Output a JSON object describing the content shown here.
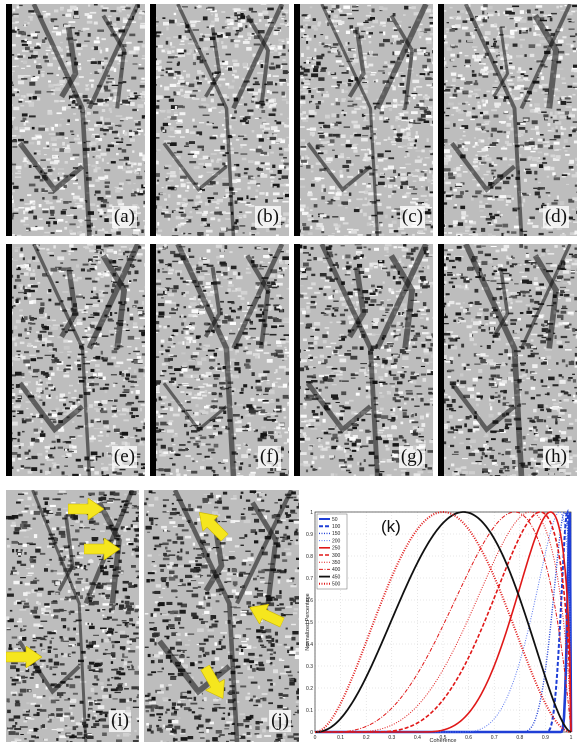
{
  "panels": [
    {
      "id": "a",
      "label": "(a)"
    },
    {
      "id": "b",
      "label": "(b)"
    },
    {
      "id": "c",
      "label": "(c)"
    },
    {
      "id": "d",
      "label": "(d)"
    },
    {
      "id": "e",
      "label": "(e)"
    },
    {
      "id": "f",
      "label": "(f)"
    },
    {
      "id": "g",
      "label": "(g)"
    },
    {
      "id": "h",
      "label": "(h)"
    },
    {
      "id": "i",
      "label": "(i)"
    },
    {
      "id": "j",
      "label": "(j)"
    }
  ],
  "arrow_color": "#f5e61e",
  "chart_data": {
    "type": "line",
    "panel_label": "(k)",
    "xlabel": "Coherence",
    "ylabel": "Normalized Percentage",
    "xlim": [
      0,
      1
    ],
    "ylim": [
      0,
      1
    ],
    "x_ticks": [
      0,
      0.1,
      0.2,
      0.3,
      0.4,
      0.5,
      0.6,
      0.7,
      0.8,
      0.9,
      1
    ],
    "y_ticks": [
      0,
      0.1,
      0.2,
      0.3,
      0.4,
      0.5,
      0.6,
      0.7,
      0.8,
      0.9,
      1
    ],
    "x_tick_labels": [
      "0",
      "0.1",
      "0.2",
      "0.3",
      "0.4",
      "0.5",
      "0.6",
      "0.7",
      "0.8",
      "0.9",
      "1"
    ],
    "y_tick_labels": [
      "0",
      "0.1",
      "0.2",
      "0.3",
      "0.4",
      "0.5",
      "0.6",
      "0.7",
      "0.8",
      "0.9",
      "1"
    ],
    "grid": true,
    "legend_position": "top-left",
    "series": [
      {
        "name": "50",
        "color": "#1f3fd6",
        "dash": "solid",
        "peak": 0.995,
        "lo": 0.96,
        "width": 2.6
      },
      {
        "name": "100",
        "color": "#1f3fd6",
        "dash": "dashed",
        "peak": 0.985,
        "lo": 0.9,
        "width": 2.0
      },
      {
        "name": "150",
        "color": "#1f3fd6",
        "dash": "dotted",
        "peak": 0.975,
        "lo": 0.8,
        "width": 1.4
      },
      {
        "name": "200",
        "color": "#5a78f0",
        "dash": "dotted",
        "peak": 0.955,
        "lo": 0.55,
        "width": 1.0
      },
      {
        "name": "250",
        "color": "#e01818",
        "dash": "solid",
        "peak": 0.92,
        "lo": 0.4,
        "width": 1.6
      },
      {
        "name": "300",
        "color": "#e01818",
        "dash": "dashed",
        "peak": 0.88,
        "lo": 0.2,
        "width": 1.6
      },
      {
        "name": "350",
        "color": "#e01818",
        "dash": "dotted",
        "peak": 0.84,
        "lo": 0.12,
        "width": 1.0
      },
      {
        "name": "400",
        "color": "#e01818",
        "dash": "dashdot",
        "peak": 0.78,
        "lo": 0.05,
        "width": 1.0
      },
      {
        "name": "450",
        "color": "#111111",
        "dash": "solid",
        "peak": 0.58,
        "lo": 0.0,
        "width": 1.8
      },
      {
        "name": "500",
        "color": "#e01818",
        "dash": "dotted",
        "peak": 0.5,
        "lo": 0.0,
        "width": 2.0
      }
    ]
  }
}
